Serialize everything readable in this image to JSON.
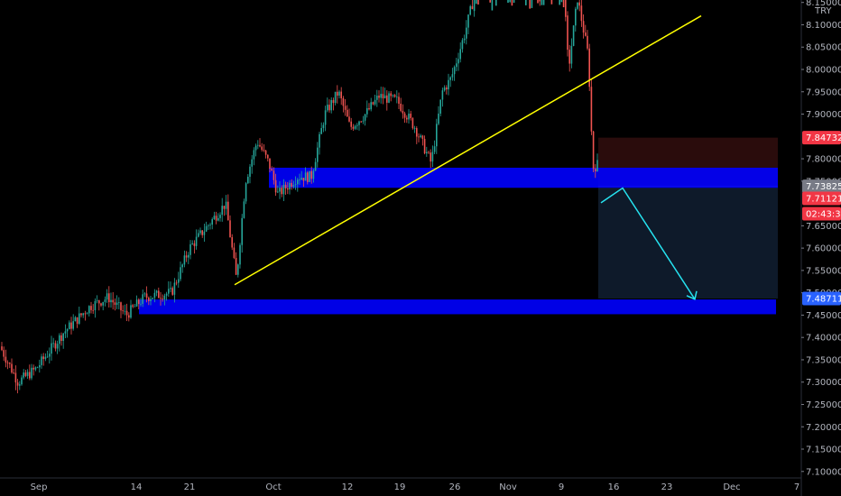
{
  "chart_data": {
    "type": "candlestick",
    "currency": "TRY",
    "y_ticks": [
      "8.15000",
      "8.10000",
      "8.05000",
      "8.00000",
      "7.95000",
      "7.90000",
      "7.80000",
      "7.75000",
      "7.65000",
      "7.60000",
      "7.55000",
      "7.50000",
      "7.45000",
      "7.40000",
      "7.35000",
      "7.30000",
      "7.25000",
      "7.20000",
      "7.15000",
      "7.10000"
    ],
    "x_ticks": [
      "Sep",
      "14",
      "21",
      "Oct",
      "12",
      "19",
      "26",
      "Nov",
      "9",
      "16",
      "23",
      "Dec",
      "7"
    ],
    "ylim": [
      7.1,
      8.16
    ],
    "price_tags": [
      {
        "label": "7.84732",
        "value": 7.84732,
        "color": "#f23645"
      },
      {
        "label": "7.73825",
        "value": 7.73825,
        "color": "#787b86"
      },
      {
        "label": "7.71121",
        "value": 7.71121,
        "color": "#f23645"
      },
      {
        "label": "02:43:39",
        "value": 7.6863,
        "color": "#f23645"
      },
      {
        "label": "7.48711",
        "value": 7.48711,
        "color": "#2962ff"
      }
    ],
    "zones": [
      {
        "name": "resistance-zone",
        "y_top": 7.78,
        "y_bottom": 7.735,
        "color": "#0000ff"
      },
      {
        "name": "support-zone",
        "y_top": 7.485,
        "y_bottom": 7.452,
        "color": "#0000ff"
      }
    ],
    "trendline": {
      "color": "#ffff00",
      "start": [
        7.518
      ],
      "end": [
        8.12
      ]
    },
    "position": {
      "stop_top": 7.8473,
      "entry": 7.7383,
      "target": 7.4871,
      "stop_color": "#2a0c0c",
      "target_color": "#0e1a2a"
    },
    "projection": {
      "color": "#26e3f0",
      "points": [
        7.7015,
        7.7345,
        7.4855
      ]
    },
    "colors": {
      "up": "#26a69a",
      "down": "#ef5350",
      "background": "#000000",
      "axis_text": "#b2b5be"
    }
  }
}
